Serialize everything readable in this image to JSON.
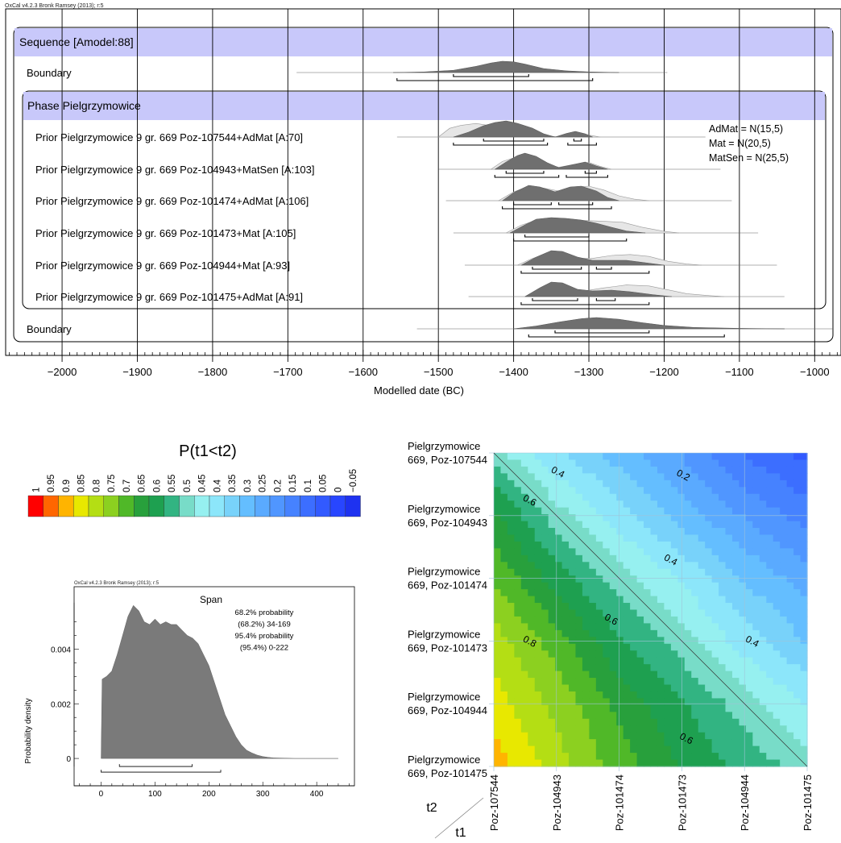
{
  "chart_data": [
    {
      "type": "area",
      "credit": "OxCal v4.2.3 Bronk Ramsey (2013); r:5",
      "xlabel": "Modelled date (BC)",
      "xlim": [
        -2075,
        -965
      ],
      "xticks": [
        -2000,
        -1900,
        -1800,
        -1700,
        -1600,
        -1500,
        -1400,
        -1300,
        -1200,
        -1100,
        -1000
      ],
      "xtick_labels": [
        "−2000",
        "−1900",
        "−1800",
        "−1700",
        "−1600",
        "−1500",
        "−1400",
        "−1300",
        "−1200",
        "−1100",
        "−1000"
      ],
      "sequence_label": "Sequence [Amodel:88]",
      "phase_label": "Phase Pielgrzymowice",
      "note_lines": [
        "AdMat = N(15,5)",
        "Mat = N(20,5)",
        "MatSen = N(25,5)"
      ],
      "rows": [
        {
          "label": "Boundary",
          "kind": "boundary",
          "posterior": [
            [
              -1560,
              0
            ],
            [
              -1520,
              0.05
            ],
            [
              -1480,
              0.2
            ],
            [
              -1450,
              0.55
            ],
            [
              -1430,
              0.85
            ],
            [
              -1415,
              1
            ],
            [
              -1400,
              0.95
            ],
            [
              -1385,
              0.75
            ],
            [
              -1360,
              0.35
            ],
            [
              -1330,
              0.15
            ],
            [
              -1300,
              0.06
            ],
            [
              -1260,
              0
            ]
          ],
          "range68": [
            [
              -1480,
              -1380
            ]
          ],
          "range95": [
            [
              -1555,
              -1295
            ]
          ]
        },
        {
          "label": "Prior Pielgrzymowice 9 gr. 669 Poz-107544+AdMat [A:70]",
          "kind": "date",
          "prior": [
            [
              -1500,
              0
            ],
            [
              -1485,
              0.45
            ],
            [
              -1470,
              0.6
            ],
            [
              -1450,
              0.7
            ],
            [
              -1425,
              0.55
            ],
            [
              -1400,
              0.5
            ],
            [
              -1380,
              0.3
            ],
            [
              -1360,
              0.08
            ],
            [
              -1340,
              0
            ],
            [
              -1325,
              0.15
            ],
            [
              -1315,
              0.22
            ],
            [
              -1300,
              0.1
            ],
            [
              -1285,
              0
            ]
          ],
          "posterior": [
            [
              -1480,
              0
            ],
            [
              -1460,
              0.3
            ],
            [
              -1440,
              0.7
            ],
            [
              -1425,
              0.9
            ],
            [
              -1410,
              1
            ],
            [
              -1395,
              0.85
            ],
            [
              -1375,
              0.55
            ],
            [
              -1360,
              0.2
            ],
            [
              -1345,
              0
            ],
            [
              -1330,
              0.22
            ],
            [
              -1318,
              0.35
            ],
            [
              -1305,
              0.2
            ],
            [
              -1295,
              0
            ]
          ],
          "range68": [
            [
              -1440,
              -1360
            ],
            [
              -1320,
              -1310
            ]
          ],
          "range95": [
            [
              -1480,
              -1355
            ],
            [
              -1328,
              -1290
            ]
          ]
        },
        {
          "label": "Prior Pielgrzymowice 9 gr. 669 Poz-104943+MatSen [A:103]",
          "kind": "date",
          "prior": [
            [
              -1430,
              0
            ],
            [
              -1415,
              0.4
            ],
            [
              -1395,
              0.65
            ],
            [
              -1380,
              0.6
            ],
            [
              -1360,
              0.3
            ],
            [
              -1340,
              0.1
            ],
            [
              -1320,
              0.25
            ],
            [
              -1300,
              0.35
            ],
            [
              -1285,
              0.15
            ],
            [
              -1270,
              0
            ]
          ],
          "posterior": [
            [
              -1425,
              0
            ],
            [
              -1410,
              0.45
            ],
            [
              -1395,
              0.85
            ],
            [
              -1385,
              1
            ],
            [
              -1370,
              0.8
            ],
            [
              -1355,
              0.4
            ],
            [
              -1340,
              0.1
            ],
            [
              -1320,
              0.3
            ],
            [
              -1305,
              0.45
            ],
            [
              -1290,
              0.2
            ],
            [
              -1275,
              0
            ]
          ],
          "range68": [
            [
              -1410,
              -1360
            ],
            [
              -1305,
              -1290
            ]
          ],
          "range95": [
            [
              -1425,
              -1340
            ],
            [
              -1330,
              -1275
            ]
          ]
        },
        {
          "label": "Prior Pielgrzymowice 9 gr. 669 Poz-101474+AdMat [A:106]",
          "kind": "date",
          "prior": [
            [
              -1420,
              0
            ],
            [
              -1400,
              0.45
            ],
            [
              -1380,
              0.75
            ],
            [
              -1360,
              0.65
            ],
            [
              -1340,
              0.5
            ],
            [
              -1320,
              0.7
            ],
            [
              -1300,
              0.75
            ],
            [
              -1280,
              0.55
            ],
            [
              -1260,
              0.25
            ],
            [
              -1240,
              0.08
            ],
            [
              -1220,
              0
            ]
          ],
          "posterior": [
            [
              -1415,
              0
            ],
            [
              -1400,
              0.5
            ],
            [
              -1380,
              0.95
            ],
            [
              -1365,
              0.85
            ],
            [
              -1345,
              0.55
            ],
            [
              -1325,
              0.85
            ],
            [
              -1310,
              0.9
            ],
            [
              -1290,
              0.6
            ],
            [
              -1275,
              0.2
            ],
            [
              -1260,
              0
            ]
          ],
          "range68": [
            [
              -1400,
              -1350
            ],
            [
              -1340,
              -1295
            ]
          ],
          "range95": [
            [
              -1415,
              -1270
            ]
          ]
        },
        {
          "label": "Prior Pielgrzymowice 9 gr. 669 Poz-101473+Mat [A:105]",
          "kind": "date",
          "prior": [
            [
              -1410,
              0
            ],
            [
              -1390,
              0.4
            ],
            [
              -1370,
              0.65
            ],
            [
              -1340,
              0.7
            ],
            [
              -1310,
              0.65
            ],
            [
              -1280,
              0.6
            ],
            [
              -1255,
              0.55
            ],
            [
              -1230,
              0.3
            ],
            [
              -1200,
              0.08
            ],
            [
              -1180,
              0
            ]
          ],
          "posterior": [
            [
              -1405,
              0
            ],
            [
              -1385,
              0.5
            ],
            [
              -1370,
              0.85
            ],
            [
              -1350,
              0.95
            ],
            [
              -1330,
              0.9
            ],
            [
              -1310,
              0.8
            ],
            [
              -1290,
              0.6
            ],
            [
              -1270,
              0.35
            ],
            [
              -1250,
              0.12
            ],
            [
              -1225,
              0
            ]
          ],
          "range68": [
            [
              -1385,
              -1300
            ]
          ],
          "range95": [
            [
              -1400,
              -1250
            ]
          ]
        },
        {
          "label": "Prior Pielgrzymowice 9 gr. 669 Poz-104944+Mat [A:93]",
          "kind": "date",
          "prior": [
            [
              -1395,
              0
            ],
            [
              -1375,
              0.35
            ],
            [
              -1355,
              0.6
            ],
            [
              -1335,
              0.55
            ],
            [
              -1315,
              0.35
            ],
            [
              -1295,
              0.35
            ],
            [
              -1270,
              0.5
            ],
            [
              -1245,
              0.55
            ],
            [
              -1220,
              0.45
            ],
            [
              -1195,
              0.2
            ],
            [
              -1170,
              0.06
            ],
            [
              -1150,
              0
            ]
          ],
          "posterior": [
            [
              -1390,
              0
            ],
            [
              -1370,
              0.5
            ],
            [
              -1350,
              0.9
            ],
            [
              -1335,
              0.85
            ],
            [
              -1315,
              0.5
            ],
            [
              -1295,
              0.3
            ],
            [
              -1275,
              0.3
            ],
            [
              -1250,
              0.3
            ],
            [
              -1225,
              0.15
            ],
            [
              -1200,
              0
            ]
          ],
          "range68": [
            [
              -1375,
              -1310
            ],
            [
              -1290,
              -1270
            ]
          ],
          "range95": [
            [
              -1390,
              -1220
            ]
          ]
        },
        {
          "label": "Prior Pielgrzymowice 9 gr. 669 Poz-101475+AdMat [A:91]",
          "kind": "date",
          "prior": [
            [
              -1385,
              0
            ],
            [
              -1370,
              0.3
            ],
            [
              -1350,
              0.55
            ],
            [
              -1330,
              0.45
            ],
            [
              -1305,
              0.3
            ],
            [
              -1280,
              0.45
            ],
            [
              -1250,
              0.6
            ],
            [
              -1220,
              0.55
            ],
            [
              -1195,
              0.35
            ],
            [
              -1170,
              0.15
            ],
            [
              -1140,
              0.05
            ],
            [
              -1120,
              0
            ]
          ],
          "posterior": [
            [
              -1385,
              0
            ],
            [
              -1365,
              0.55
            ],
            [
              -1350,
              0.9
            ],
            [
              -1335,
              0.85
            ],
            [
              -1315,
              0.45
            ],
            [
              -1295,
              0.35
            ],
            [
              -1270,
              0.4
            ],
            [
              -1245,
              0.3
            ],
            [
              -1215,
              0.12
            ],
            [
              -1190,
              0
            ]
          ],
          "range68": [
            [
              -1375,
              -1315
            ],
            [
              -1290,
              -1265
            ]
          ],
          "range95": [
            [
              -1390,
              -1220
            ]
          ]
        },
        {
          "label": "Boundary",
          "kind": "boundary",
          "posterior": [
            [
              -1400,
              0
            ],
            [
              -1370,
              0.25
            ],
            [
              -1340,
              0.6
            ],
            [
              -1310,
              0.9
            ],
            [
              -1290,
              1
            ],
            [
              -1260,
              0.85
            ],
            [
              -1230,
              0.55
            ],
            [
              -1200,
              0.3
            ],
            [
              -1160,
              0.12
            ],
            [
              -1100,
              0.04
            ],
            [
              -1040,
              0
            ]
          ],
          "range68": [
            [
              -1345,
              -1220
            ]
          ],
          "range95": [
            [
              -1380,
              -1120
            ]
          ]
        }
      ]
    },
    {
      "type": "heatmap",
      "title": "P(t1<t2)",
      "legend_levels": [
        "1",
        "0.95",
        "0.9",
        "0.85",
        "0.8",
        "0.75",
        "0.7",
        "0.65",
        "0.6",
        "0.55",
        "0.5",
        "0.45",
        "0.4",
        "0.35",
        "0.3",
        "0.25",
        "0.2",
        "0.15",
        "0.1",
        "0.05",
        "0",
        "−0.05"
      ],
      "legend_colors": [
        "#ff0000",
        "#ff6600",
        "#ffb400",
        "#e8e800",
        "#b4de14",
        "#8cd020",
        "#50b828",
        "#28a03c",
        "#1ea050",
        "#32b482",
        "#78dcc8",
        "#96f0f0",
        "#8ce6fa",
        "#78d2fa",
        "#64beff",
        "#5aaaff",
        "#5096ff",
        "#4682ff",
        "#3c6eff",
        "#325aff",
        "#2846ff",
        "#1e32f0"
      ],
      "y_labels": [
        [
          "Pielgrzymowice",
          "669, Poz-107544"
        ],
        [
          "Pielgrzymowice",
          "669, Poz-104943"
        ],
        [
          "Pielgrzymowice",
          "669, Poz-101474"
        ],
        [
          "Pielgrzymowice",
          "669, Poz-101473"
        ],
        [
          "Pielgrzymowice",
          "669, Poz-104944"
        ],
        [
          "Pielgrzymowice",
          "669, Poz-101475"
        ]
      ],
      "x_labels": [
        "Poz-107544",
        "Poz-104943",
        "Poz-101474",
        "Poz-101473",
        "Poz-104944",
        "Poz-101475"
      ],
      "axis_t1": "t1",
      "axis_t2": "t2",
      "values": [
        [
          0.5,
          0.38,
          0.3,
          0.22,
          0.12,
          0.06
        ],
        [
          0.64,
          0.5,
          0.4,
          0.3,
          0.22,
          0.15
        ],
        [
          0.72,
          0.6,
          0.5,
          0.42,
          0.32,
          0.25
        ],
        [
          0.8,
          0.7,
          0.58,
          0.5,
          0.4,
          0.32
        ],
        [
          0.85,
          0.76,
          0.66,
          0.58,
          0.5,
          0.42
        ],
        [
          0.9,
          0.8,
          0.7,
          0.62,
          0.56,
          0.5
        ]
      ],
      "contour_labels": [
        {
          "text": "0.4",
          "x": 1.0,
          "y": 0.35
        },
        {
          "text": "0.2",
          "x": 3.0,
          "y": 0.4
        },
        {
          "text": "0.6",
          "x": 0.55,
          "y": 0.8
        },
        {
          "text": "0.4",
          "x": 2.8,
          "y": 1.75
        },
        {
          "text": "0.6",
          "x": 1.85,
          "y": 2.7
        },
        {
          "text": "0.8",
          "x": 0.55,
          "y": 3.05
        },
        {
          "text": "0.4",
          "x": 4.1,
          "y": 3.05
        },
        {
          "text": "0.6",
          "x": 3.05,
          "y": 4.6
        }
      ]
    },
    {
      "type": "area",
      "credit": "OxCal v4.2.3 Bronk Ramsey (2013); r:5",
      "title": "Span",
      "legend_lines": [
        "68.2% probability",
        "(68.2%) 34-169",
        "95.4% probability",
        "(95.4%) 0-222"
      ],
      "ylabel": "Probability density",
      "xlim": [
        -50,
        470
      ],
      "ylim": [
        -0.001,
        0.0057
      ],
      "xticks": [
        0,
        100,
        200,
        300,
        400
      ],
      "yticks": [
        0,
        0.002,
        0.004
      ],
      "ytick_labels": [
        "0",
        "0.002",
        "0.004"
      ],
      "x": [
        0,
        2,
        10,
        20,
        30,
        40,
        50,
        60,
        70,
        80,
        90,
        100,
        110,
        120,
        130,
        140,
        150,
        160,
        170,
        180,
        190,
        200,
        210,
        220,
        230,
        240,
        250,
        260,
        270,
        280,
        290,
        300,
        310,
        320,
        340,
        360,
        380,
        400,
        420,
        440
      ],
      "y": [
        0,
        0.0029,
        0.003,
        0.0032,
        0.0038,
        0.0045,
        0.0052,
        0.0056,
        0.0054,
        0.005,
        0.0049,
        0.0051,
        0.0049,
        0.005,
        0.0049,
        0.0049,
        0.0047,
        0.0045,
        0.0044,
        0.0042,
        0.0038,
        0.0034,
        0.0028,
        0.0022,
        0.0016,
        0.0012,
        0.0008,
        0.0005,
        0.0003,
        0.0002,
        0.00012,
        7e-05,
        4e-05,
        2e-05,
        1e-05,
        0,
        0,
        0,
        0,
        0
      ],
      "range68": [
        34,
        169
      ],
      "range95": [
        0,
        222
      ]
    }
  ]
}
